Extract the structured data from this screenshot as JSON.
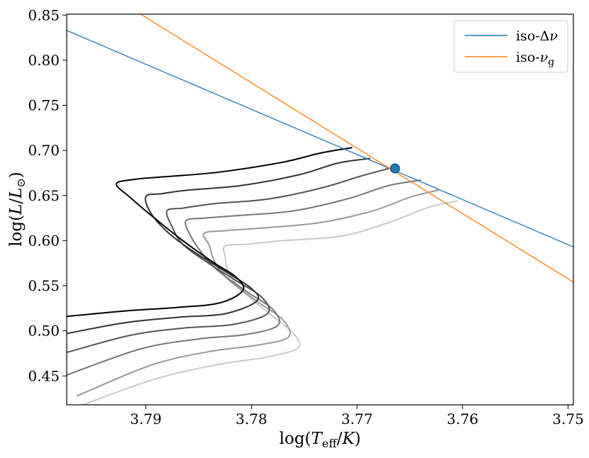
{
  "chart_data": {
    "type": "line",
    "title": "",
    "xlabel": "log(T_eff/K)",
    "ylabel": "log(L/L_⊙)",
    "xlim": [
      3.7975,
      3.7495
    ],
    "ylim": [
      0.418,
      0.851
    ],
    "x_inverted": true,
    "xticks": [
      3.79,
      3.78,
      3.77,
      3.76,
      3.75
    ],
    "xtick_labels": [
      "3.79",
      "3.78",
      "3.77",
      "3.76",
      "3.75"
    ],
    "yticks": [
      0.45,
      0.5,
      0.55,
      0.6,
      0.65,
      0.7,
      0.75,
      0.8,
      0.85
    ],
    "ytick_labels": [
      "0.45",
      "0.50",
      "0.55",
      "0.60",
      "0.65",
      "0.70",
      "0.75",
      "0.80",
      "0.85"
    ],
    "grid": false,
    "legend_position": "top-right",
    "series": [
      {
        "name": "iso-Δν",
        "color": "#1f77b4",
        "points": [
          [
            3.7975,
            0.833
          ],
          [
            3.7495,
            0.593
          ]
        ]
      },
      {
        "name": "iso-ν_g",
        "color": "#ff7f0e",
        "points": [
          [
            3.7905,
            0.851
          ],
          [
            3.7495,
            0.554
          ]
        ]
      }
    ],
    "tracks": [
      {
        "color": "#000000",
        "points": [
          [
            3.7975,
            0.516
          ],
          [
            3.792,
            0.522
          ],
          [
            3.787,
            0.526
          ],
          [
            3.783,
            0.531
          ],
          [
            3.7808,
            0.545
          ],
          [
            3.7815,
            0.56
          ],
          [
            3.7835,
            0.575
          ],
          [
            3.7865,
            0.6
          ],
          [
            3.7895,
            0.628
          ],
          [
            3.7915,
            0.648
          ],
          [
            3.7928,
            0.663
          ],
          [
            3.791,
            0.668
          ],
          [
            3.788,
            0.671
          ],
          [
            3.783,
            0.676
          ],
          [
            3.777,
            0.687
          ],
          [
            3.7735,
            0.697
          ],
          [
            3.7705,
            0.703
          ]
        ]
      },
      {
        "color": "#333333",
        "points": [
          [
            3.7975,
            0.497
          ],
          [
            3.792,
            0.509
          ],
          [
            3.787,
            0.515
          ],
          [
            3.7825,
            0.519
          ],
          [
            3.7795,
            0.533
          ],
          [
            3.78,
            0.547
          ],
          [
            3.7825,
            0.566
          ],
          [
            3.7855,
            0.588
          ],
          [
            3.7878,
            0.608
          ],
          [
            3.7895,
            0.63
          ],
          [
            3.79,
            0.649
          ],
          [
            3.7885,
            0.652
          ],
          [
            3.786,
            0.656
          ],
          [
            3.781,
            0.661
          ],
          [
            3.7755,
            0.673
          ],
          [
            3.7718,
            0.686
          ],
          [
            3.7688,
            0.691
          ]
        ]
      },
      {
        "color": "#555555",
        "points": [
          [
            3.7975,
            0.476
          ],
          [
            3.7915,
            0.495
          ],
          [
            3.7865,
            0.503
          ],
          [
            3.7818,
            0.507
          ],
          [
            3.7785,
            0.519
          ],
          [
            3.779,
            0.537
          ],
          [
            3.7815,
            0.556
          ],
          [
            3.7842,
            0.576
          ],
          [
            3.7865,
            0.596
          ],
          [
            3.7875,
            0.615
          ],
          [
            3.788,
            0.633
          ],
          [
            3.7865,
            0.636
          ],
          [
            3.7835,
            0.641
          ],
          [
            3.7785,
            0.646
          ],
          [
            3.7735,
            0.658
          ],
          [
            3.7695,
            0.672
          ],
          [
            3.767,
            0.68
          ]
        ]
      },
      {
        "color": "#777777",
        "points": [
          [
            3.7975,
            0.451
          ],
          [
            3.7905,
            0.48
          ],
          [
            3.785,
            0.491
          ],
          [
            3.7805,
            0.496
          ],
          [
            3.7775,
            0.506
          ],
          [
            3.778,
            0.524
          ],
          [
            3.7805,
            0.544
          ],
          [
            3.7832,
            0.567
          ],
          [
            3.7848,
            0.588
          ],
          [
            3.7858,
            0.606
          ],
          [
            3.7862,
            0.622
          ],
          [
            3.7845,
            0.625
          ],
          [
            3.781,
            0.628
          ],
          [
            3.776,
            0.633
          ],
          [
            3.771,
            0.646
          ],
          [
            3.767,
            0.661
          ],
          [
            3.764,
            0.667
          ]
        ]
      },
      {
        "color": "#999999",
        "points": [
          [
            3.7965,
            0.428
          ],
          [
            3.7895,
            0.462
          ],
          [
            3.784,
            0.477
          ],
          [
            3.7795,
            0.484
          ],
          [
            3.7765,
            0.493
          ],
          [
            3.777,
            0.512
          ],
          [
            3.7795,
            0.533
          ],
          [
            3.7822,
            0.557
          ],
          [
            3.7835,
            0.577
          ],
          [
            3.784,
            0.595
          ],
          [
            3.7845,
            0.608
          ],
          [
            3.7825,
            0.611
          ],
          [
            3.779,
            0.614
          ],
          [
            3.7735,
            0.62
          ],
          [
            3.7685,
            0.633
          ],
          [
            3.765,
            0.648
          ],
          [
            3.7623,
            0.656
          ]
        ]
      },
      {
        "color": "#c8c8c8",
        "points": [
          [
            3.796,
            0.418
          ],
          [
            3.789,
            0.447
          ],
          [
            3.783,
            0.463
          ],
          [
            3.7785,
            0.471
          ],
          [
            3.7756,
            0.481
          ],
          [
            3.776,
            0.497
          ],
          [
            3.7785,
            0.521
          ],
          [
            3.781,
            0.546
          ],
          [
            3.7822,
            0.566
          ],
          [
            3.7825,
            0.583
          ],
          [
            3.7825,
            0.594
          ],
          [
            3.7805,
            0.596
          ],
          [
            3.777,
            0.6
          ],
          [
            3.7715,
            0.605
          ],
          [
            3.767,
            0.62
          ],
          [
            3.7632,
            0.637
          ],
          [
            3.7605,
            0.644
          ]
        ]
      }
    ],
    "marker": {
      "x": 3.7664,
      "y": 0.68,
      "color": "#1f77b4"
    }
  }
}
